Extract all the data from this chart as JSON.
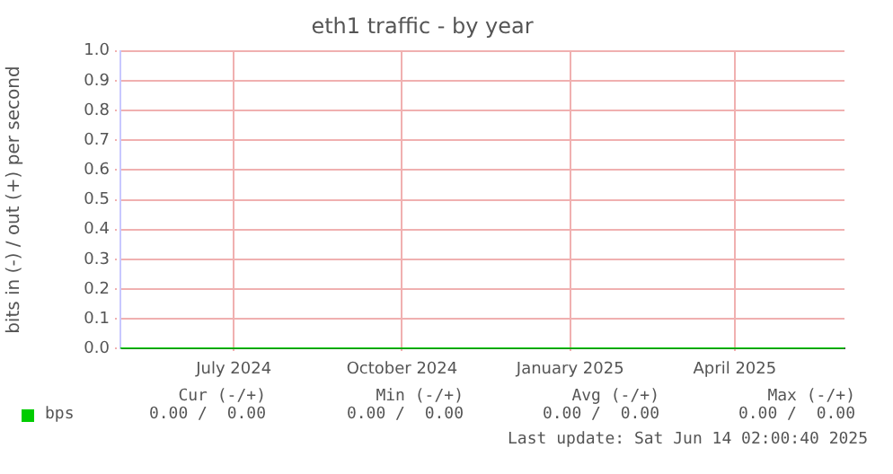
{
  "chart_data": {
    "type": "line",
    "title": "eth1 traffic - by year",
    "ylabel": "bits in (-) / out (+) per second",
    "xlim": [
      "2024-05-14",
      "2025-06-14"
    ],
    "xticks": [
      {
        "value": "2024-07-15",
        "label": "July 2024"
      },
      {
        "value": "2024-10-15",
        "label": "October 2024"
      },
      {
        "value": "2025-01-15",
        "label": "January 2025"
      },
      {
        "value": "2025-04-15",
        "label": "April 2025"
      }
    ],
    "ylim": [
      0,
      1
    ],
    "yticks": [
      {
        "value": 0,
        "label": "0.0"
      },
      {
        "value": 0.1,
        "label": "0.1"
      },
      {
        "value": 0.2,
        "label": "0.2"
      },
      {
        "value": 0.3,
        "label": "0.3"
      },
      {
        "value": 0.4,
        "label": "0.4"
      },
      {
        "value": 0.5,
        "label": "0.5"
      },
      {
        "value": 0.6,
        "label": "0.6"
      },
      {
        "value": 0.7,
        "label": "0.7"
      },
      {
        "value": 0.8,
        "label": "0.8"
      },
      {
        "value": 0.9,
        "label": "0.9"
      },
      {
        "value": 1,
        "label": "1.0"
      }
    ],
    "grid": true,
    "legend": "bottom left",
    "marker": "none",
    "series": [
      {
        "name": "bps",
        "color": "#00cc00",
        "x": [
          "2024-05-14",
          "2025-06-14"
        ],
        "values": [
          0,
          0
        ]
      }
    ],
    "annotations": [
      "Cur (-/+)",
      "Min (-/+)",
      "Avg (-/+)",
      "Max (-/+)",
      "0.00 /  0.00",
      "0.00 /  0.00",
      "0.00 /  0.00",
      "0.00 /  0.00",
      "Last update: Sat Jun 14 02:00:40 2025"
    ]
  }
}
